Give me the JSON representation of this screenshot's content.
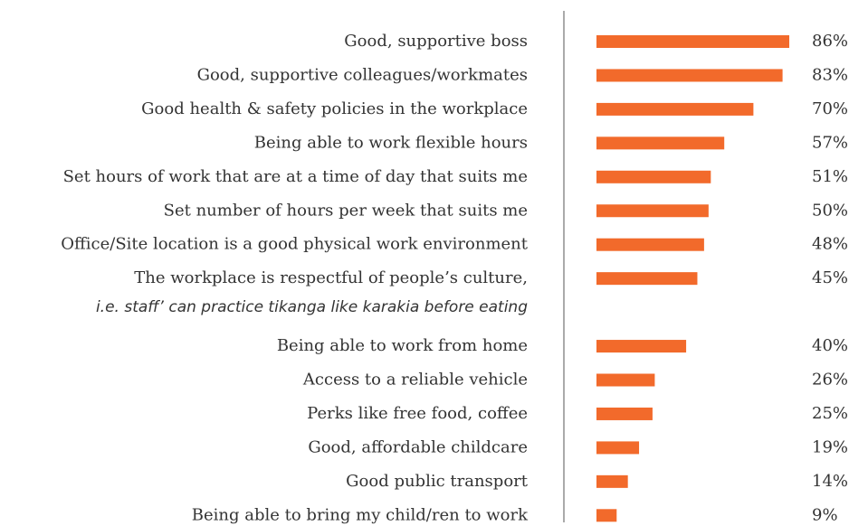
{
  "chart_data": {
    "type": "bar",
    "orientation": "horizontal",
    "categories": [
      "Good, supportive boss",
      "Good, supportive colleagues/workmates",
      "Good health & safety policies in the workplace",
      "Being able to work flexible hours",
      "Set hours of work that are at a time of day that suits me",
      "Set number of hours per week that suits me",
      "Office/Site location is a good physical work environment",
      "The workplace is respectful of people’s culture,",
      "Being able to work from home",
      "Access to a reliable vehicle",
      "Perks like free food, coffee",
      "Good, affordable childcare",
      "Good public transport",
      "Being able to bring my child/ren to work"
    ],
    "annotations": [
      "i.e. staff’ can practice tikanga like karakia before eating"
    ],
    "values": [
      86,
      83,
      70,
      57,
      51,
      50,
      48,
      45,
      40,
      26,
      25,
      19,
      14,
      9
    ],
    "value_labels": [
      "86%",
      "83%",
      "70%",
      "57%",
      "51%",
      "50%",
      "48%",
      "45%",
      "40%",
      "26%",
      "25%",
      "19%",
      "14%",
      "9%"
    ],
    "color": "#f26a2b"
  }
}
